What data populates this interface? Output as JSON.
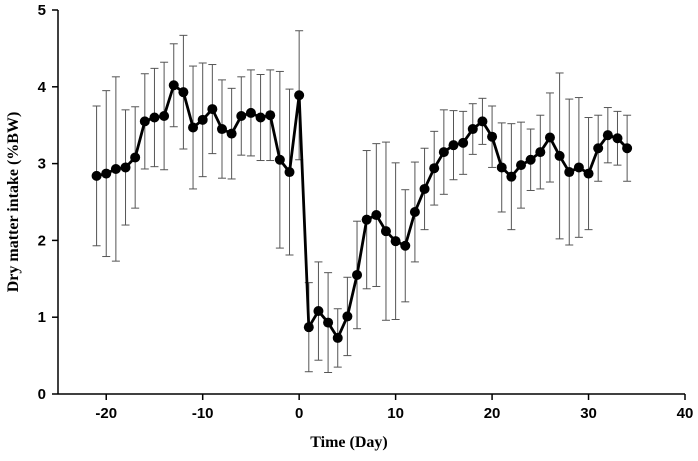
{
  "chart_data": {
    "type": "line",
    "xlabel": "Time (Day)",
    "ylabel": "Dry matter intake (%BW)",
    "xlim": [
      -25,
      40
    ],
    "ylim": [
      0,
      5
    ],
    "xticks": [
      -20,
      -10,
      0,
      10,
      20,
      30,
      40
    ],
    "yticks": [
      0,
      1,
      2,
      3,
      4,
      5
    ],
    "xtick_labels": [
      "-20",
      "-10",
      "0",
      "10",
      "20",
      "30",
      "40"
    ],
    "ytick_labels": [
      "0",
      "1",
      "2",
      "3",
      "4",
      "5"
    ],
    "grid": false,
    "legend": "none",
    "series": [
      {
        "color": "#000000",
        "marker": "circle",
        "error_bars": true,
        "points": [
          {
            "x": -21,
            "y": 2.84,
            "err": 0.91
          },
          {
            "x": -20,
            "y": 2.87,
            "err": 1.08
          },
          {
            "x": -19,
            "y": 2.93,
            "err": 1.2
          },
          {
            "x": -18,
            "y": 2.95,
            "err": 0.75
          },
          {
            "x": -17,
            "y": 3.08,
            "err": 0.66
          },
          {
            "x": -16,
            "y": 3.55,
            "err": 0.62
          },
          {
            "x": -15,
            "y": 3.6,
            "err": 0.64
          },
          {
            "x": -14,
            "y": 3.62,
            "err": 0.7
          },
          {
            "x": -13,
            "y": 4.02,
            "err": 0.54
          },
          {
            "x": -12,
            "y": 3.93,
            "err": 0.74
          },
          {
            "x": -11,
            "y": 3.47,
            "err": 0.8
          },
          {
            "x": -10,
            "y": 3.57,
            "err": 0.74
          },
          {
            "x": -9,
            "y": 3.71,
            "err": 0.58
          },
          {
            "x": -8,
            "y": 3.45,
            "err": 0.64
          },
          {
            "x": -7,
            "y": 3.39,
            "err": 0.59
          },
          {
            "x": -6,
            "y": 3.62,
            "err": 0.51
          },
          {
            "x": -5,
            "y": 3.66,
            "err": 0.56
          },
          {
            "x": -4,
            "y": 3.6,
            "err": 0.56
          },
          {
            "x": -3,
            "y": 3.63,
            "err": 0.59
          },
          {
            "x": -2,
            "y": 3.05,
            "err": 1.15
          },
          {
            "x": -1,
            "y": 2.89,
            "err": 1.08
          },
          {
            "x": 0,
            "y": 3.89,
            "err": 0.84
          },
          {
            "x": 1,
            "y": 0.87,
            "err": 0.58
          },
          {
            "x": 2,
            "y": 1.08,
            "err": 0.64
          },
          {
            "x": 3,
            "y": 0.93,
            "err": 0.65
          },
          {
            "x": 4,
            "y": 0.73,
            "err": 0.38
          },
          {
            "x": 5,
            "y": 1.01,
            "err": 0.51
          },
          {
            "x": 6,
            "y": 1.55,
            "err": 0.7
          },
          {
            "x": 7,
            "y": 2.27,
            "err": 0.9
          },
          {
            "x": 8,
            "y": 2.33,
            "err": 0.93
          },
          {
            "x": 9,
            "y": 2.12,
            "err": 1.16
          },
          {
            "x": 10,
            "y": 1.99,
            "err": 1.02
          },
          {
            "x": 11,
            "y": 1.93,
            "err": 0.73
          },
          {
            "x": 12,
            "y": 2.37,
            "err": 0.65
          },
          {
            "x": 13,
            "y": 2.67,
            "err": 0.53
          },
          {
            "x": 14,
            "y": 2.94,
            "err": 0.48
          },
          {
            "x": 15,
            "y": 3.15,
            "err": 0.55
          },
          {
            "x": 16,
            "y": 3.24,
            "err": 0.45
          },
          {
            "x": 17,
            "y": 3.27,
            "err": 0.41
          },
          {
            "x": 18,
            "y": 3.45,
            "err": 0.33
          },
          {
            "x": 19,
            "y": 3.55,
            "err": 0.3
          },
          {
            "x": 20,
            "y": 3.35,
            "err": 0.4
          },
          {
            "x": 21,
            "y": 2.95,
            "err": 0.58
          },
          {
            "x": 22,
            "y": 2.83,
            "err": 0.69
          },
          {
            "x": 23,
            "y": 2.98,
            "err": 0.56
          },
          {
            "x": 24,
            "y": 3.05,
            "err": 0.4
          },
          {
            "x": 25,
            "y": 3.15,
            "err": 0.48
          },
          {
            "x": 26,
            "y": 3.34,
            "err": 0.58
          },
          {
            "x": 27,
            "y": 3.1,
            "err": 1.08
          },
          {
            "x": 28,
            "y": 2.89,
            "err": 0.95
          },
          {
            "x": 29,
            "y": 2.95,
            "err": 0.91
          },
          {
            "x": 30,
            "y": 2.87,
            "err": 0.73
          },
          {
            "x": 31,
            "y": 3.2,
            "err": 0.43
          },
          {
            "x": 32,
            "y": 3.37,
            "err": 0.36
          },
          {
            "x": 33,
            "y": 3.33,
            "err": 0.35
          },
          {
            "x": 34,
            "y": 3.2,
            "err": 0.43
          }
        ]
      }
    ]
  }
}
